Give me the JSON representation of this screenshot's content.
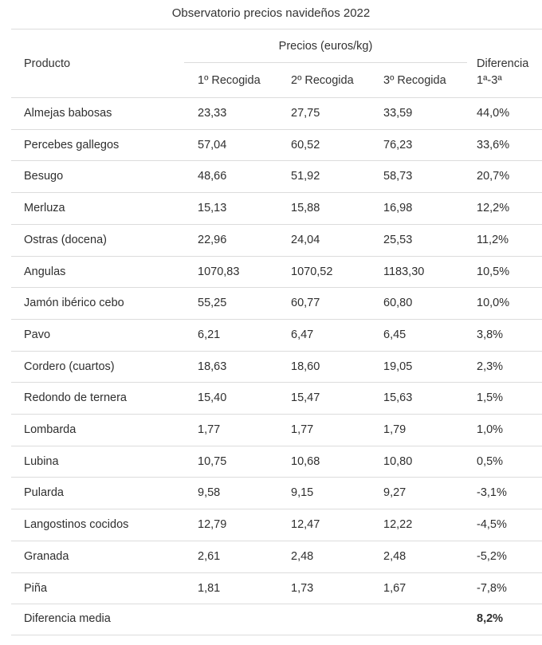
{
  "table": {
    "caption": "Observatorio precios navideños 2022",
    "headers": {
      "producto": "Producto",
      "precios_group": "Precios (euros/kg)",
      "recogida_1": "1º Recogida",
      "recogida_2": "2º Recogida",
      "recogida_3": "3º Recogida",
      "diferencia_line1": "Diferencia",
      "diferencia_line2": "1ª-3ª"
    },
    "rows": [
      {
        "producto": "Almejas babosas",
        "r1": "23,33",
        "r2": "27,75",
        "r3": "33,59",
        "dif": "44,0%"
      },
      {
        "producto": "Percebes gallegos",
        "r1": "57,04",
        "r2": "60,52",
        "r3": "76,23",
        "dif": "33,6%"
      },
      {
        "producto": "Besugo",
        "r1": "48,66",
        "r2": "51,92",
        "r3": "58,73",
        "dif": "20,7%"
      },
      {
        "producto": "Merluza",
        "r1": "15,13",
        "r2": "15,88",
        "r3": "16,98",
        "dif": "12,2%"
      },
      {
        "producto": "Ostras (docena)",
        "r1": "22,96",
        "r2": "24,04",
        "r3": "25,53",
        "dif": "11,2%"
      },
      {
        "producto": "Angulas",
        "r1": "1070,83",
        "r2": "1070,52",
        "r3": "1183,30",
        "dif": "10,5%"
      },
      {
        "producto": "Jamón ibérico cebo",
        "r1": "55,25",
        "r2": "60,77",
        "r3": "60,80",
        "dif": "10,0%"
      },
      {
        "producto": "Pavo",
        "r1": "6,21",
        "r2": "6,47",
        "r3": "6,45",
        "dif": "3,8%"
      },
      {
        "producto": "Cordero (cuartos)",
        "r1": "18,63",
        "r2": "18,60",
        "r3": "19,05",
        "dif": "2,3%"
      },
      {
        "producto": "Redondo de ternera",
        "r1": "15,40",
        "r2": "15,47",
        "r3": "15,63",
        "dif": "1,5%"
      },
      {
        "producto": "Lombarda",
        "r1": "1,77",
        "r2": "1,77",
        "r3": "1,79",
        "dif": "1,0%"
      },
      {
        "producto": "Lubina",
        "r1": "10,75",
        "r2": "10,68",
        "r3": "10,80",
        "dif": "0,5%"
      },
      {
        "producto": "Pularda",
        "r1": "9,58",
        "r2": "9,15",
        "r3": "9,27",
        "dif": "-3,1%"
      },
      {
        "producto": "Langostinos cocidos",
        "r1": "12,79",
        "r2": "12,47",
        "r3": "12,22",
        "dif": "-4,5%"
      },
      {
        "producto": "Granada",
        "r1": "2,61",
        "r2": "2,48",
        "r3": "2,48",
        "dif": "-5,2%"
      },
      {
        "producto": "Piña",
        "r1": "1,81",
        "r2": "1,73",
        "r3": "1,67",
        "dif": "-7,8%"
      }
    ],
    "footer": {
      "label": "Diferencia media",
      "value": "8,2%"
    }
  },
  "colors": {
    "text": "#2f2f2f",
    "rule": "#dcdcdc"
  }
}
